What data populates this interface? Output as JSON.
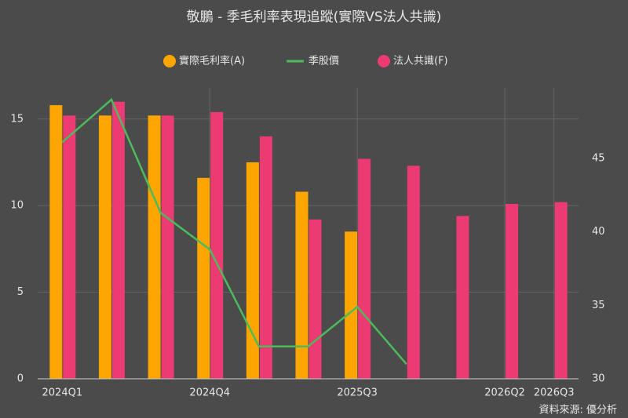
{
  "chart_data": {
    "type": "bar_line",
    "title": "敬鵬 - 季毛利率表現追蹤(實際VS法人共識)",
    "source": "資料來源: 優分析",
    "categories": [
      "2024Q1",
      null,
      null,
      "2024Q4",
      null,
      null,
      "2025Q3",
      null,
      null,
      "2026Q2",
      "2026Q3"
    ],
    "series": [
      {
        "name": "實際毛利率(A)",
        "type": "bar",
        "color": "#ffa500",
        "values": [
          15.8,
          15.2,
          15.2,
          11.6,
          12.5,
          10.8,
          8.5,
          null,
          null,
          null,
          null
        ]
      },
      {
        "name": "季股價",
        "type": "line",
        "axis": "y2",
        "color": "#4cbb5c",
        "values": [
          46.1,
          49.0,
          41.3,
          38.8,
          32.2,
          32.2,
          34.9,
          31.0,
          null,
          null,
          null
        ]
      },
      {
        "name": "法人共識(F)",
        "type": "bar",
        "color": "#ec3a73",
        "values": [
          15.2,
          16.0,
          15.2,
          15.4,
          14.0,
          9.2,
          12.7,
          12.3,
          9.4,
          10.1,
          10.2
        ]
      }
    ],
    "ylim": [
      0,
      16.8
    ],
    "yticks": [
      0,
      5,
      10,
      15
    ],
    "y2lim": [
      30,
      49.8
    ],
    "y2ticks": [
      30,
      35,
      40,
      45
    ],
    "grid": true,
    "legend": "top"
  }
}
